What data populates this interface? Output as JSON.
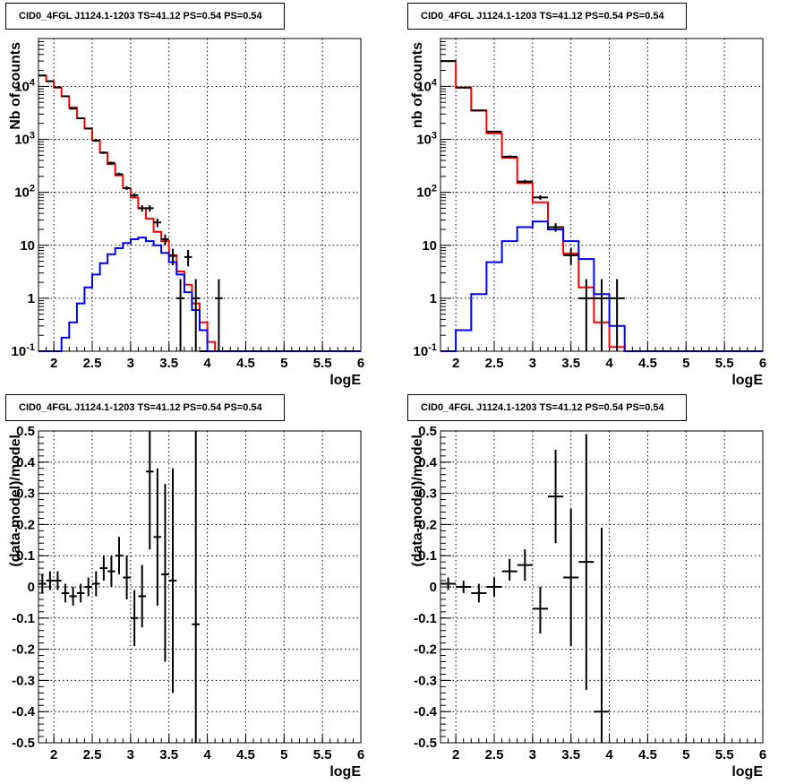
{
  "chart_data": [
    {
      "type": "line",
      "title": "CID0_4FGL J1124.1-1203 TS=41.12 PS=0.54 PS=0.54",
      "xlabel": "logE",
      "ylabel": "Nb of counts",
      "xlim": [
        1.8,
        6.0
      ],
      "ylim": [
        0.1,
        80000
      ],
      "yscale": "log",
      "grid": true,
      "xticks": [
        "2",
        "2.5",
        "3",
        "3.5",
        "4",
        "4.5",
        "5",
        "5.5",
        "6"
      ],
      "yticks": [
        "10^-1",
        "1",
        "10",
        "10^2",
        "10^3",
        "10^4"
      ],
      "series": [
        {
          "color": "#ff0000",
          "style": "step",
          "edges": [
            1.8,
            1.9,
            2.0,
            2.1,
            2.2,
            2.3,
            2.4,
            2.5,
            2.6,
            2.7,
            2.8,
            2.9,
            3.0,
            3.1,
            3.2,
            3.3,
            3.4,
            3.5,
            3.6,
            3.7,
            3.8,
            3.9,
            4.0,
            4.1,
            4.2
          ],
          "values": [
            16000,
            12500,
            9500,
            6500,
            4000,
            2500,
            1600,
            950,
            560,
            340,
            210,
            120,
            80,
            50,
            32,
            18,
            12,
            6.5,
            3.2,
            1.8,
            0.8,
            0.35,
            0.15,
            0.1
          ]
        },
        {
          "color": "#0000ff",
          "style": "step",
          "edges": [
            1.8,
            1.9,
            2.0,
            2.1,
            2.2,
            2.3,
            2.4,
            2.5,
            2.6,
            2.7,
            2.8,
            2.9,
            3.0,
            3.1,
            3.2,
            3.3,
            3.4,
            3.5,
            3.6,
            3.7,
            3.8,
            3.9,
            4.0,
            4.1,
            4.2,
            6.0
          ],
          "values": [
            0.1,
            0.1,
            0.1,
            0.18,
            0.35,
            0.8,
            1.6,
            2.8,
            4.6,
            6.8,
            8.8,
            11,
            13,
            14,
            12,
            10,
            7.2,
            4.8,
            2.8,
            1.3,
            0.6,
            0.25,
            0.1,
            0.1,
            0.1
          ]
        },
        {
          "color": "#000000",
          "style": "errorbar",
          "x": [
            1.85,
            1.95,
            2.05,
            2.15,
            2.25,
            2.35,
            2.45,
            2.55,
            2.65,
            2.75,
            2.85,
            2.95,
            3.05,
            3.15,
            3.25,
            3.35,
            3.45,
            3.55,
            3.65,
            3.75,
            3.85,
            3.95,
            4.15
          ],
          "xerr": 0.05,
          "y": [
            16000,
            12500,
            9600,
            6500,
            3800,
            2500,
            1600,
            950,
            560,
            360,
            220,
            120,
            88,
            50,
            50,
            27,
            13,
            6.3,
            1.0,
            6.0,
            1.0,
            0.1,
            1.0
          ],
          "ylo": [
            15800,
            12300,
            9400,
            6300,
            3700,
            2400,
            1550,
            900,
            530,
            340,
            205,
            110,
            80,
            43,
            43,
            22,
            10,
            4.2,
            0.1,
            4.0,
            0.1,
            0.1,
            0.1
          ],
          "yhi": [
            16200,
            12700,
            9800,
            6700,
            3900,
            2600,
            1650,
            1000,
            590,
            380,
            235,
            130,
            96,
            57,
            57,
            32,
            16,
            8.6,
            2.3,
            8.2,
            2.3,
            0.1,
            2.3
          ]
        }
      ]
    },
    {
      "type": "line",
      "title": "CID0_4FGL J1124.1-1203 TS=41.12 PS=0.54 PS=0.54",
      "xlabel": "logE",
      "ylabel": "nb of counts",
      "xlim": [
        1.8,
        6.0
      ],
      "ylim": [
        0.1,
        80000
      ],
      "yscale": "log",
      "grid": true,
      "xticks": [
        "2",
        "2.5",
        "3",
        "3.5",
        "4",
        "4.5",
        "5",
        "5.5",
        "6"
      ],
      "yticks": [
        "10^-1",
        "1",
        "10",
        "10^2",
        "10^3",
        "10^4"
      ],
      "series": [
        {
          "color": "#ff0000",
          "style": "step",
          "edges": [
            1.8,
            2.0,
            2.2,
            2.4,
            2.6,
            2.8,
            3.0,
            3.2,
            3.4,
            3.6,
            3.8,
            4.0,
            4.2,
            4.4
          ],
          "values": [
            30000,
            9500,
            3500,
            1300,
            450,
            150,
            65,
            22,
            7.0,
            1.6,
            0.35,
            0.12,
            0.1
          ]
        },
        {
          "color": "#0000ff",
          "style": "step",
          "edges": [
            1.8,
            2.0,
            2.2,
            2.4,
            2.6,
            2.8,
            3.0,
            3.2,
            3.4,
            3.6,
            3.8,
            4.0,
            4.2,
            6.0
          ],
          "values": [
            0.1,
            0.25,
            1.2,
            4.8,
            12,
            22,
            28,
            20,
            12,
            5.5,
            1.2,
            0.3,
            0.1
          ]
        },
        {
          "color": "#000000",
          "style": "errorbar",
          "x": [
            1.9,
            2.1,
            2.3,
            2.5,
            2.7,
            2.9,
            3.1,
            3.3,
            3.5,
            3.7,
            3.9,
            4.1
          ],
          "xerr": 0.1,
          "y": [
            30000,
            9500,
            3500,
            1400,
            470,
            160,
            80,
            22,
            6.5,
            1.0,
            1.0,
            1.0
          ],
          "ylo": [
            29700,
            9300,
            3400,
            1350,
            440,
            148,
            72,
            18,
            4.3,
            0.1,
            0.1,
            0.1
          ],
          "yhi": [
            30300,
            9700,
            3600,
            1450,
            500,
            172,
            88,
            26,
            9.0,
            2.3,
            2.3,
            2.3
          ]
        }
      ]
    },
    {
      "type": "scatter",
      "title": "CID0_4FGL J1124.1-1203 TS=41.12 PS=0.54 PS=0.54",
      "xlabel": "logE",
      "ylabel": "(data-model)/model",
      "xlim": [
        1.8,
        6.0
      ],
      "ylim": [
        -0.5,
        0.5
      ],
      "yscale": "linear",
      "grid": true,
      "xticks": [
        "2",
        "2.5",
        "3",
        "3.5",
        "4",
        "4.5",
        "5",
        "5.5",
        "6"
      ],
      "yticks": [
        "-0.5",
        "-0.4",
        "-0.3",
        "-0.2",
        "-0.1",
        "0",
        "0.1",
        "0.2",
        "0.3",
        "0.4",
        "0.5"
      ],
      "series": [
        {
          "color": "#000000",
          "style": "errorbar",
          "x": [
            1.85,
            1.95,
            2.05,
            2.15,
            2.25,
            2.35,
            2.45,
            2.55,
            2.65,
            2.75,
            2.85,
            2.95,
            3.05,
            3.15,
            3.25,
            3.35,
            3.45,
            3.55,
            3.85
          ],
          "xerr": 0.05,
          "y": [
            0.01,
            0.02,
            0.02,
            -0.02,
            -0.03,
            -0.02,
            0.0,
            0.01,
            0.06,
            0.05,
            0.1,
            0.03,
            -0.1,
            -0.03,
            0.37,
            0.16,
            0.04,
            0.02,
            -0.12
          ],
          "ylo": [
            -0.02,
            -0.01,
            -0.01,
            -0.05,
            -0.06,
            -0.05,
            -0.03,
            -0.03,
            0.02,
            0.0,
            0.04,
            -0.04,
            -0.19,
            -0.13,
            0.12,
            -0.06,
            -0.24,
            -0.34,
            -0.5
          ],
          "yhi": [
            0.04,
            0.05,
            0.05,
            0.01,
            0.0,
            0.01,
            0.03,
            0.05,
            0.1,
            0.1,
            0.16,
            0.1,
            -0.01,
            0.07,
            0.5,
            0.38,
            0.33,
            0.38,
            0.5
          ]
        }
      ]
    },
    {
      "type": "scatter",
      "title": "CID0_4FGL J1124.1-1203 TS=41.12 PS=0.54 PS=0.54",
      "xlabel": "logE",
      "ylabel": "(data-model)/model",
      "xlim": [
        1.8,
        6.0
      ],
      "ylim": [
        -0.5,
        0.5
      ],
      "yscale": "linear",
      "grid": true,
      "xticks": [
        "2",
        "2.5",
        "3",
        "3.5",
        "4",
        "4.5",
        "5",
        "5.5",
        "6"
      ],
      "yticks": [
        "-0.5",
        "-0.4",
        "-0.3",
        "-0.2",
        "-0.1",
        "0",
        "0.1",
        "0.2",
        "0.3",
        "0.4",
        "0.5"
      ],
      "series": [
        {
          "color": "#000000",
          "style": "errorbar",
          "x": [
            1.9,
            2.1,
            2.3,
            2.5,
            2.7,
            2.9,
            3.1,
            3.3,
            3.5,
            3.7,
            3.9
          ],
          "xerr": 0.1,
          "y": [
            0.01,
            0.0,
            -0.02,
            0.0,
            0.05,
            0.07,
            -0.07,
            0.29,
            0.03,
            0.08,
            -0.4
          ],
          "ylo": [
            -0.01,
            -0.02,
            -0.05,
            -0.03,
            0.02,
            0.02,
            -0.15,
            0.14,
            -0.19,
            -0.33,
            -0.5
          ],
          "yhi": [
            0.03,
            0.02,
            0.01,
            0.03,
            0.09,
            0.12,
            0.0,
            0.44,
            0.25,
            0.49,
            0.19
          ]
        }
      ]
    }
  ]
}
